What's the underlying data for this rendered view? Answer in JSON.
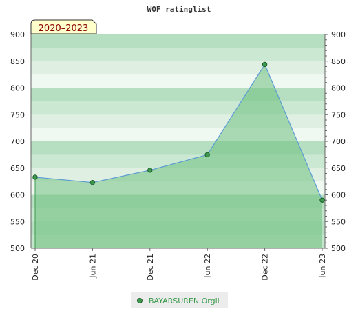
{
  "chart_data": {
    "type": "area",
    "title": "WOF ratinglist",
    "badge": "2020–2023",
    "xlabel": "",
    "ylabel": "",
    "x_ticks": [
      "Dec 20",
      "Jun 21",
      "Dec 21",
      "Jun 22",
      "Dec 22",
      "Jun 23"
    ],
    "ylim": [
      500,
      900
    ],
    "y_ticks": [
      500,
      550,
      600,
      650,
      700,
      750,
      800,
      850,
      900
    ],
    "series": [
      {
        "name": "BAYARSUREN Orgil",
        "x": [
          "Dec 20",
          "Jun 21",
          "Dec 21",
          "Jun 22",
          "Dec 22",
          "Jun 23"
        ],
        "values": [
          633,
          623,
          646,
          675,
          844,
          590
        ]
      }
    ],
    "grid": true,
    "legend_position": "bottom-center",
    "colors": {
      "line": "#5b9bd5",
      "fill": "#6dbf7e",
      "marker": "#3c9a4e",
      "badge_bg": "#ffffcc"
    }
  }
}
